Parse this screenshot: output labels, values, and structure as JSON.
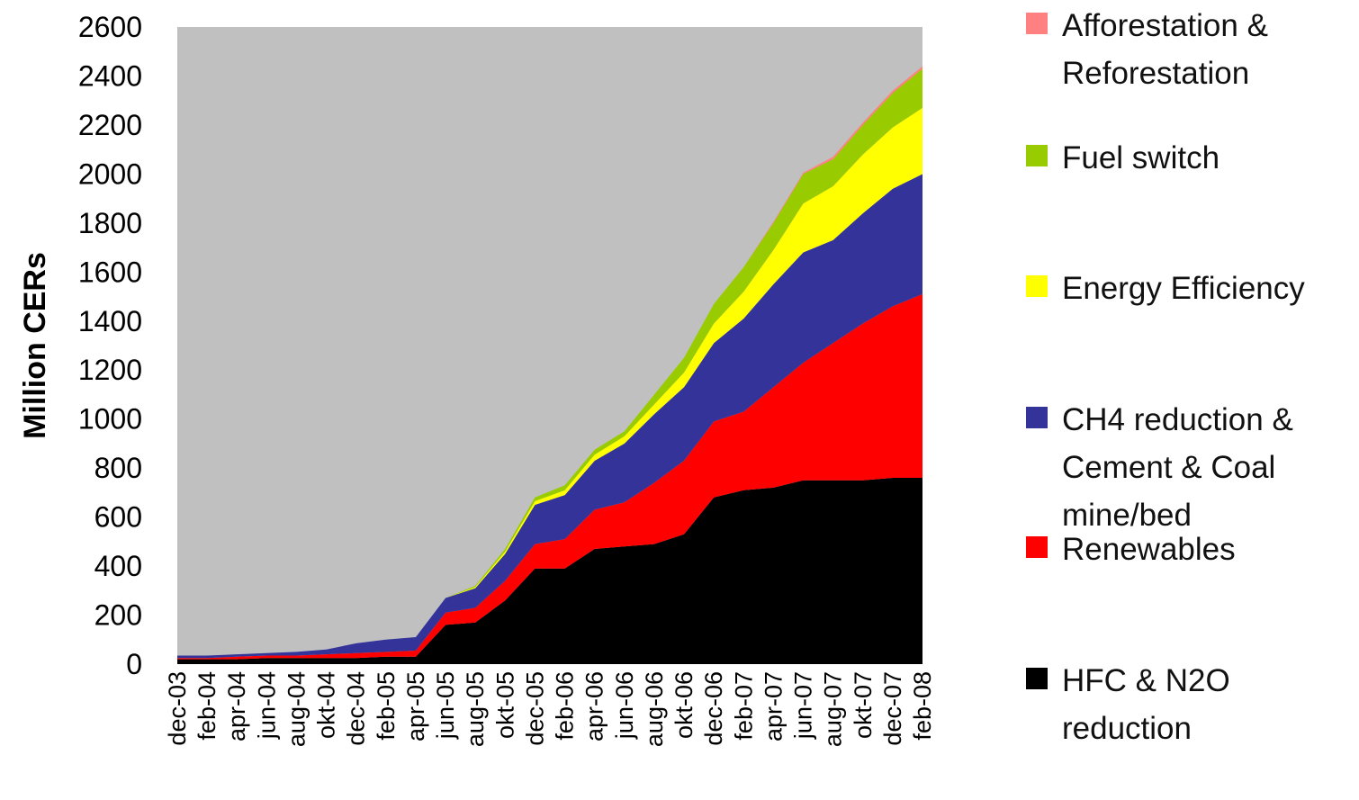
{
  "chart_data": {
    "type": "area",
    "stacked": true,
    "ylabel": "Million CERs",
    "xlabel": "",
    "ylim": [
      0,
      2600
    ],
    "yticks": [
      0,
      200,
      400,
      600,
      800,
      1000,
      1200,
      1400,
      1600,
      1800,
      2000,
      2200,
      2400,
      2600
    ],
    "background_color": "#c0c0c0",
    "legend_placement": "right",
    "categories": [
      "dec-03",
      "feb-04",
      "apr-04",
      "jun-04",
      "aug-04",
      "okt-04",
      "dec-04",
      "feb-05",
      "apr-05",
      "jun-05",
      "aug-05",
      "okt-05",
      "dec-05",
      "feb-06",
      "apr-06",
      "jun-06",
      "aug-06",
      "okt-06",
      "dec-06",
      "feb-07",
      "apr-07",
      "jun-07",
      "aug-07",
      "okt-07",
      "dec-07",
      "feb-08"
    ],
    "series": [
      {
        "name": "HFC & N2O reduction",
        "color": "#000000",
        "values": [
          20,
          20,
          20,
          25,
          25,
          25,
          25,
          30,
          30,
          160,
          170,
          260,
          390,
          390,
          470,
          480,
          490,
          530,
          680,
          710,
          720,
          750,
          750,
          750,
          760,
          760
        ]
      },
      {
        "name": "Renewables",
        "color": "#ff0000",
        "values": [
          5,
          5,
          10,
          10,
          10,
          15,
          20,
          20,
          25,
          50,
          60,
          80,
          100,
          120,
          160,
          180,
          250,
          300,
          310,
          320,
          410,
          480,
          560,
          640,
          700,
          750
        ]
      },
      {
        "name": "CH4 reduction & Cement & Coal mine/bed",
        "color": "#333399",
        "values": [
          10,
          10,
          10,
          10,
          15,
          20,
          40,
          50,
          55,
          60,
          80,
          110,
          160,
          180,
          200,
          240,
          280,
          300,
          320,
          380,
          420,
          450,
          420,
          450,
          480,
          490
        ]
      },
      {
        "name": "Energy Efficiency",
        "color": "#ffff00",
        "values": [
          0,
          0,
          0,
          0,
          0,
          0,
          0,
          0,
          0,
          0,
          5,
          10,
          15,
          20,
          25,
          30,
          40,
          60,
          80,
          110,
          140,
          200,
          220,
          240,
          250,
          270
        ]
      },
      {
        "name": "Fuel switch",
        "color": "#99cc00",
        "values": [
          0,
          0,
          0,
          0,
          0,
          0,
          0,
          0,
          0,
          0,
          5,
          10,
          15,
          20,
          20,
          20,
          40,
          60,
          80,
          100,
          110,
          120,
          110,
          120,
          140,
          160
        ]
      },
      {
        "name": "Afforestation & Reforestation",
        "color": "#ff8080",
        "values": [
          0,
          0,
          0,
          0,
          0,
          0,
          0,
          0,
          0,
          0,
          0,
          0,
          0,
          0,
          0,
          0,
          0,
          0,
          0,
          0,
          5,
          5,
          10,
          10,
          10,
          10
        ]
      }
    ]
  },
  "legend": [
    {
      "line1": "Afforestation &",
      "line2": "Reforestation",
      "line3": "",
      "color": "#ff8080"
    },
    {
      "line1": "Fuel switch",
      "line2": "",
      "line3": "",
      "color": "#99cc00"
    },
    {
      "line1": "Energy Efficiency",
      "line2": "",
      "line3": "",
      "color": "#ffff00"
    },
    {
      "line1": "CH4 reduction &",
      "line2": "Cement & Coal",
      "line3": "mine/bed",
      "color": "#333399"
    },
    {
      "line1": "Renewables",
      "line2": "",
      "line3": "",
      "color": "#ff0000"
    },
    {
      "line1": "HFC & N2O",
      "line2": "reduction",
      "line3": "",
      "color": "#000000"
    }
  ]
}
